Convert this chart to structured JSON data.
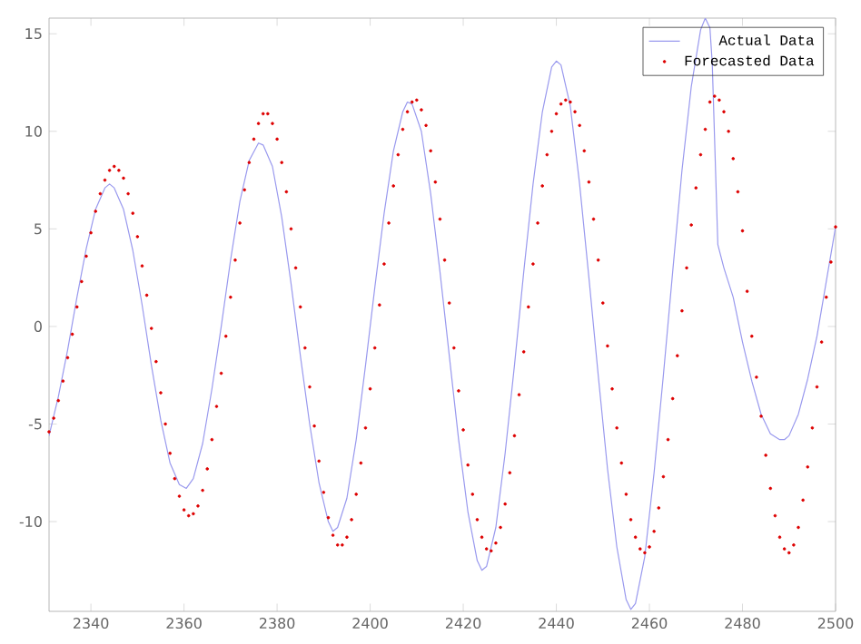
{
  "chart_data": {
    "type": "line",
    "xlim": [
      2331,
      2500
    ],
    "ylim": [
      -14.6,
      15.8
    ],
    "xticks": [
      2340,
      2360,
      2380,
      2400,
      2420,
      2440,
      2460,
      2480,
      2500
    ],
    "yticks": [
      -10,
      -5,
      0,
      5,
      10,
      15
    ],
    "grid": false,
    "legend": "top right",
    "series": [
      {
        "name": "Actual Data",
        "color": "#9999ee",
        "line_style": "solid",
        "marker": "none",
        "x": [
          2331,
          2333,
          2335,
          2337,
          2339,
          2341,
          2343,
          2344,
          2345,
          2347,
          2349,
          2351,
          2353,
          2355,
          2357,
          2359,
          2360.5,
          2362,
          2364,
          2366,
          2368,
          2370,
          2372,
          2374,
          2376,
          2377,
          2379,
          2381,
          2383,
          2385,
          2387,
          2389,
          2391,
          2392,
          2393,
          2395,
          2397,
          2399,
          2401,
          2403,
          2405,
          2407,
          2408,
          2409,
          2411,
          2413,
          2415,
          2417,
          2419,
          2421,
          2423,
          2424,
          2425,
          2427,
          2429,
          2431,
          2433,
          2435,
          2437,
          2439,
          2440,
          2441,
          2443,
          2445,
          2447,
          2449,
          2451,
          2453,
          2455,
          2456,
          2457,
          2459,
          2461,
          2463,
          2465,
          2467,
          2469,
          2471,
          2472,
          2473,
          2473.5,
          2474.7,
          2476,
          2478,
          2480,
          2482,
          2484,
          2486,
          2488,
          2489,
          2490,
          2492,
          2494,
          2496,
          2498,
          2500
        ],
        "values": [
          -5.6,
          -3.6,
          -1.2,
          1.5,
          4.0,
          6.0,
          7.1,
          7.3,
          7.1,
          6.0,
          3.9,
          1.1,
          -2.0,
          -4.8,
          -7.0,
          -8.1,
          -8.3,
          -7.8,
          -6.0,
          -3.2,
          0.0,
          3.4,
          6.4,
          8.5,
          9.4,
          9.3,
          8.2,
          5.6,
          2.2,
          -1.5,
          -5.0,
          -8.0,
          -10.0,
          -10.5,
          -10.3,
          -8.8,
          -5.8,
          -2.0,
          2.0,
          5.8,
          9.0,
          11.0,
          11.5,
          11.4,
          10.0,
          6.8,
          2.8,
          -1.5,
          -5.8,
          -9.5,
          -12.0,
          -12.5,
          -12.3,
          -10.3,
          -6.5,
          -2.0,
          2.8,
          7.3,
          11.0,
          13.3,
          13.6,
          13.4,
          11.3,
          7.3,
          2.5,
          -2.5,
          -7.3,
          -11.3,
          -14.0,
          -14.5,
          -14.2,
          -11.8,
          -7.5,
          -2.5,
          2.8,
          8.0,
          12.3,
          15.2,
          15.8,
          15.3,
          13.5,
          4.2,
          3.0,
          1.5,
          -0.8,
          -2.8,
          -4.5,
          -5.5,
          -5.8,
          -5.8,
          -5.6,
          -4.5,
          -2.7,
          -0.5,
          2.3,
          5.1
        ]
      },
      {
        "name": "Forecasted Data",
        "type": "scatter",
        "color": "#dd0000",
        "marker": "circle",
        "x": [
          2331,
          2332,
          2333,
          2334,
          2335,
          2336,
          2337,
          2338,
          2339,
          2340,
          2341,
          2342,
          2343,
          2344,
          2345,
          2346,
          2347,
          2348,
          2349,
          2350,
          2351,
          2352,
          2353,
          2354,
          2355,
          2356,
          2357,
          2358,
          2359,
          2360,
          2361,
          2362,
          2363,
          2364,
          2365,
          2366,
          2367,
          2368,
          2369,
          2370,
          2371,
          2372,
          2373,
          2374,
          2375,
          2376,
          2377,
          2378,
          2379,
          2380,
          2381,
          2382,
          2383,
          2384,
          2385,
          2386,
          2387,
          2388,
          2389,
          2390,
          2391,
          2392,
          2393,
          2394,
          2395,
          2396,
          2397,
          2398,
          2399,
          2400,
          2401,
          2402,
          2403,
          2404,
          2405,
          2406,
          2407,
          2408,
          2409,
          2410,
          2411,
          2412,
          2413,
          2414,
          2415,
          2416,
          2417,
          2418,
          2419,
          2420,
          2421,
          2422,
          2423,
          2424,
          2425,
          2426,
          2427,
          2428,
          2429,
          2430,
          2431,
          2432,
          2433,
          2434,
          2435,
          2436,
          2437,
          2438,
          2439,
          2440,
          2441,
          2442,
          2443,
          2444,
          2445,
          2446,
          2447,
          2448,
          2449,
          2450,
          2451,
          2452,
          2453,
          2454,
          2455,
          2456,
          2457,
          2458,
          2459,
          2460,
          2461,
          2462,
          2463,
          2464,
          2465,
          2466,
          2467,
          2468,
          2469,
          2470,
          2471,
          2472,
          2473,
          2474,
          2475,
          2476,
          2477,
          2478,
          2479,
          2480,
          2481,
          2482,
          2483,
          2484,
          2485,
          2486,
          2487,
          2488,
          2489,
          2490,
          2491,
          2492,
          2493,
          2494,
          2495,
          2496,
          2497,
          2498,
          2499,
          2500
        ],
        "values": [
          -5.4,
          -4.7,
          -3.8,
          -2.8,
          -1.6,
          -0.4,
          1.0,
          2.3,
          3.6,
          4.8,
          5.9,
          6.8,
          7.5,
          8.0,
          8.2,
          8.0,
          7.6,
          6.8,
          5.8,
          4.6,
          3.1,
          1.6,
          -0.1,
          -1.8,
          -3.4,
          -5.0,
          -6.5,
          -7.8,
          -8.7,
          -9.4,
          -9.7,
          -9.6,
          -9.2,
          -8.4,
          -7.3,
          -5.8,
          -4.1,
          -2.4,
          -0.5,
          1.5,
          3.4,
          5.3,
          7.0,
          8.4,
          9.6,
          10.4,
          10.9,
          10.9,
          10.4,
          9.6,
          8.4,
          6.9,
          5.0,
          3.0,
          1.0,
          -1.1,
          -3.1,
          -5.1,
          -6.9,
          -8.5,
          -9.8,
          -10.7,
          -11.2,
          -11.2,
          -10.8,
          -9.9,
          -8.6,
          -7.0,
          -5.2,
          -3.2,
          -1.1,
          1.1,
          3.2,
          5.3,
          7.2,
          8.8,
          10.1,
          11.0,
          11.5,
          11.6,
          11.1,
          10.3,
          9.0,
          7.4,
          5.5,
          3.4,
          1.2,
          -1.1,
          -3.3,
          -5.3,
          -7.1,
          -8.6,
          -9.9,
          -10.8,
          -11.4,
          -11.5,
          -11.1,
          -10.3,
          -9.1,
          -7.5,
          -5.6,
          -3.5,
          -1.3,
          1.0,
          3.2,
          5.3,
          7.2,
          8.8,
          10.0,
          10.9,
          11.4,
          11.6,
          11.5,
          11.0,
          10.3,
          9.0,
          7.4,
          5.5,
          3.4,
          1.2,
          -1.0,
          -3.2,
          -5.2,
          -7.0,
          -8.6,
          -9.9,
          -10.8,
          -11.4,
          -11.6,
          -11.3,
          -10.5,
          -9.3,
          -7.7,
          -5.8,
          -3.7,
          -1.5,
          0.8,
          3.0,
          5.2,
          7.1,
          8.8,
          10.1,
          11.5,
          11.8,
          11.6,
          11.0,
          10.0,
          8.6,
          6.9,
          4.9,
          1.8,
          -0.5,
          -2.6,
          -4.6,
          -6.6,
          -8.3,
          -9.7,
          -10.8,
          -11.4,
          -11.6,
          -11.2,
          -10.3,
          -8.9,
          -7.2,
          -5.2,
          -3.1,
          -0.8,
          1.5,
          3.3,
          5.1
        ]
      }
    ]
  }
}
